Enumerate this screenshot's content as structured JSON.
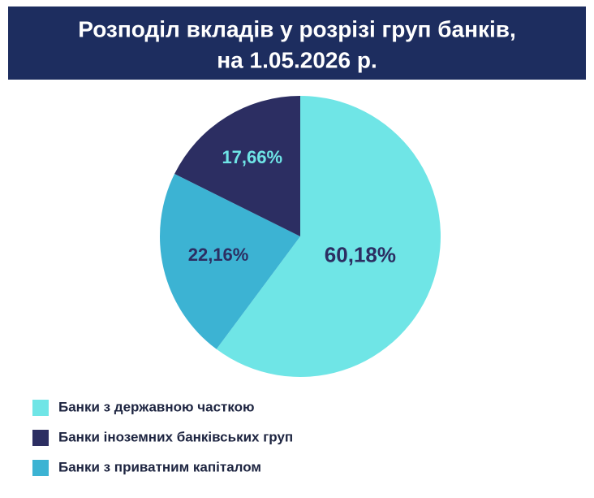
{
  "chart_data": {
    "type": "pie",
    "title": "Розподіл вкладів у розрізі груп банків,",
    "subtitle": "на 1.05.2026 р.",
    "categories": [
      "Банки з державною часткою",
      "Банки з приватним капіталом",
      "Банки іноземних банківських груп"
    ],
    "values": [
      60.18,
      22.16,
      17.66
    ],
    "value_labels": [
      "60,18%",
      "22,16%",
      "17,66%"
    ],
    "colors": [
      "#6fe5e6",
      "#3cb3d3",
      "#2c2e62"
    ]
  }
}
